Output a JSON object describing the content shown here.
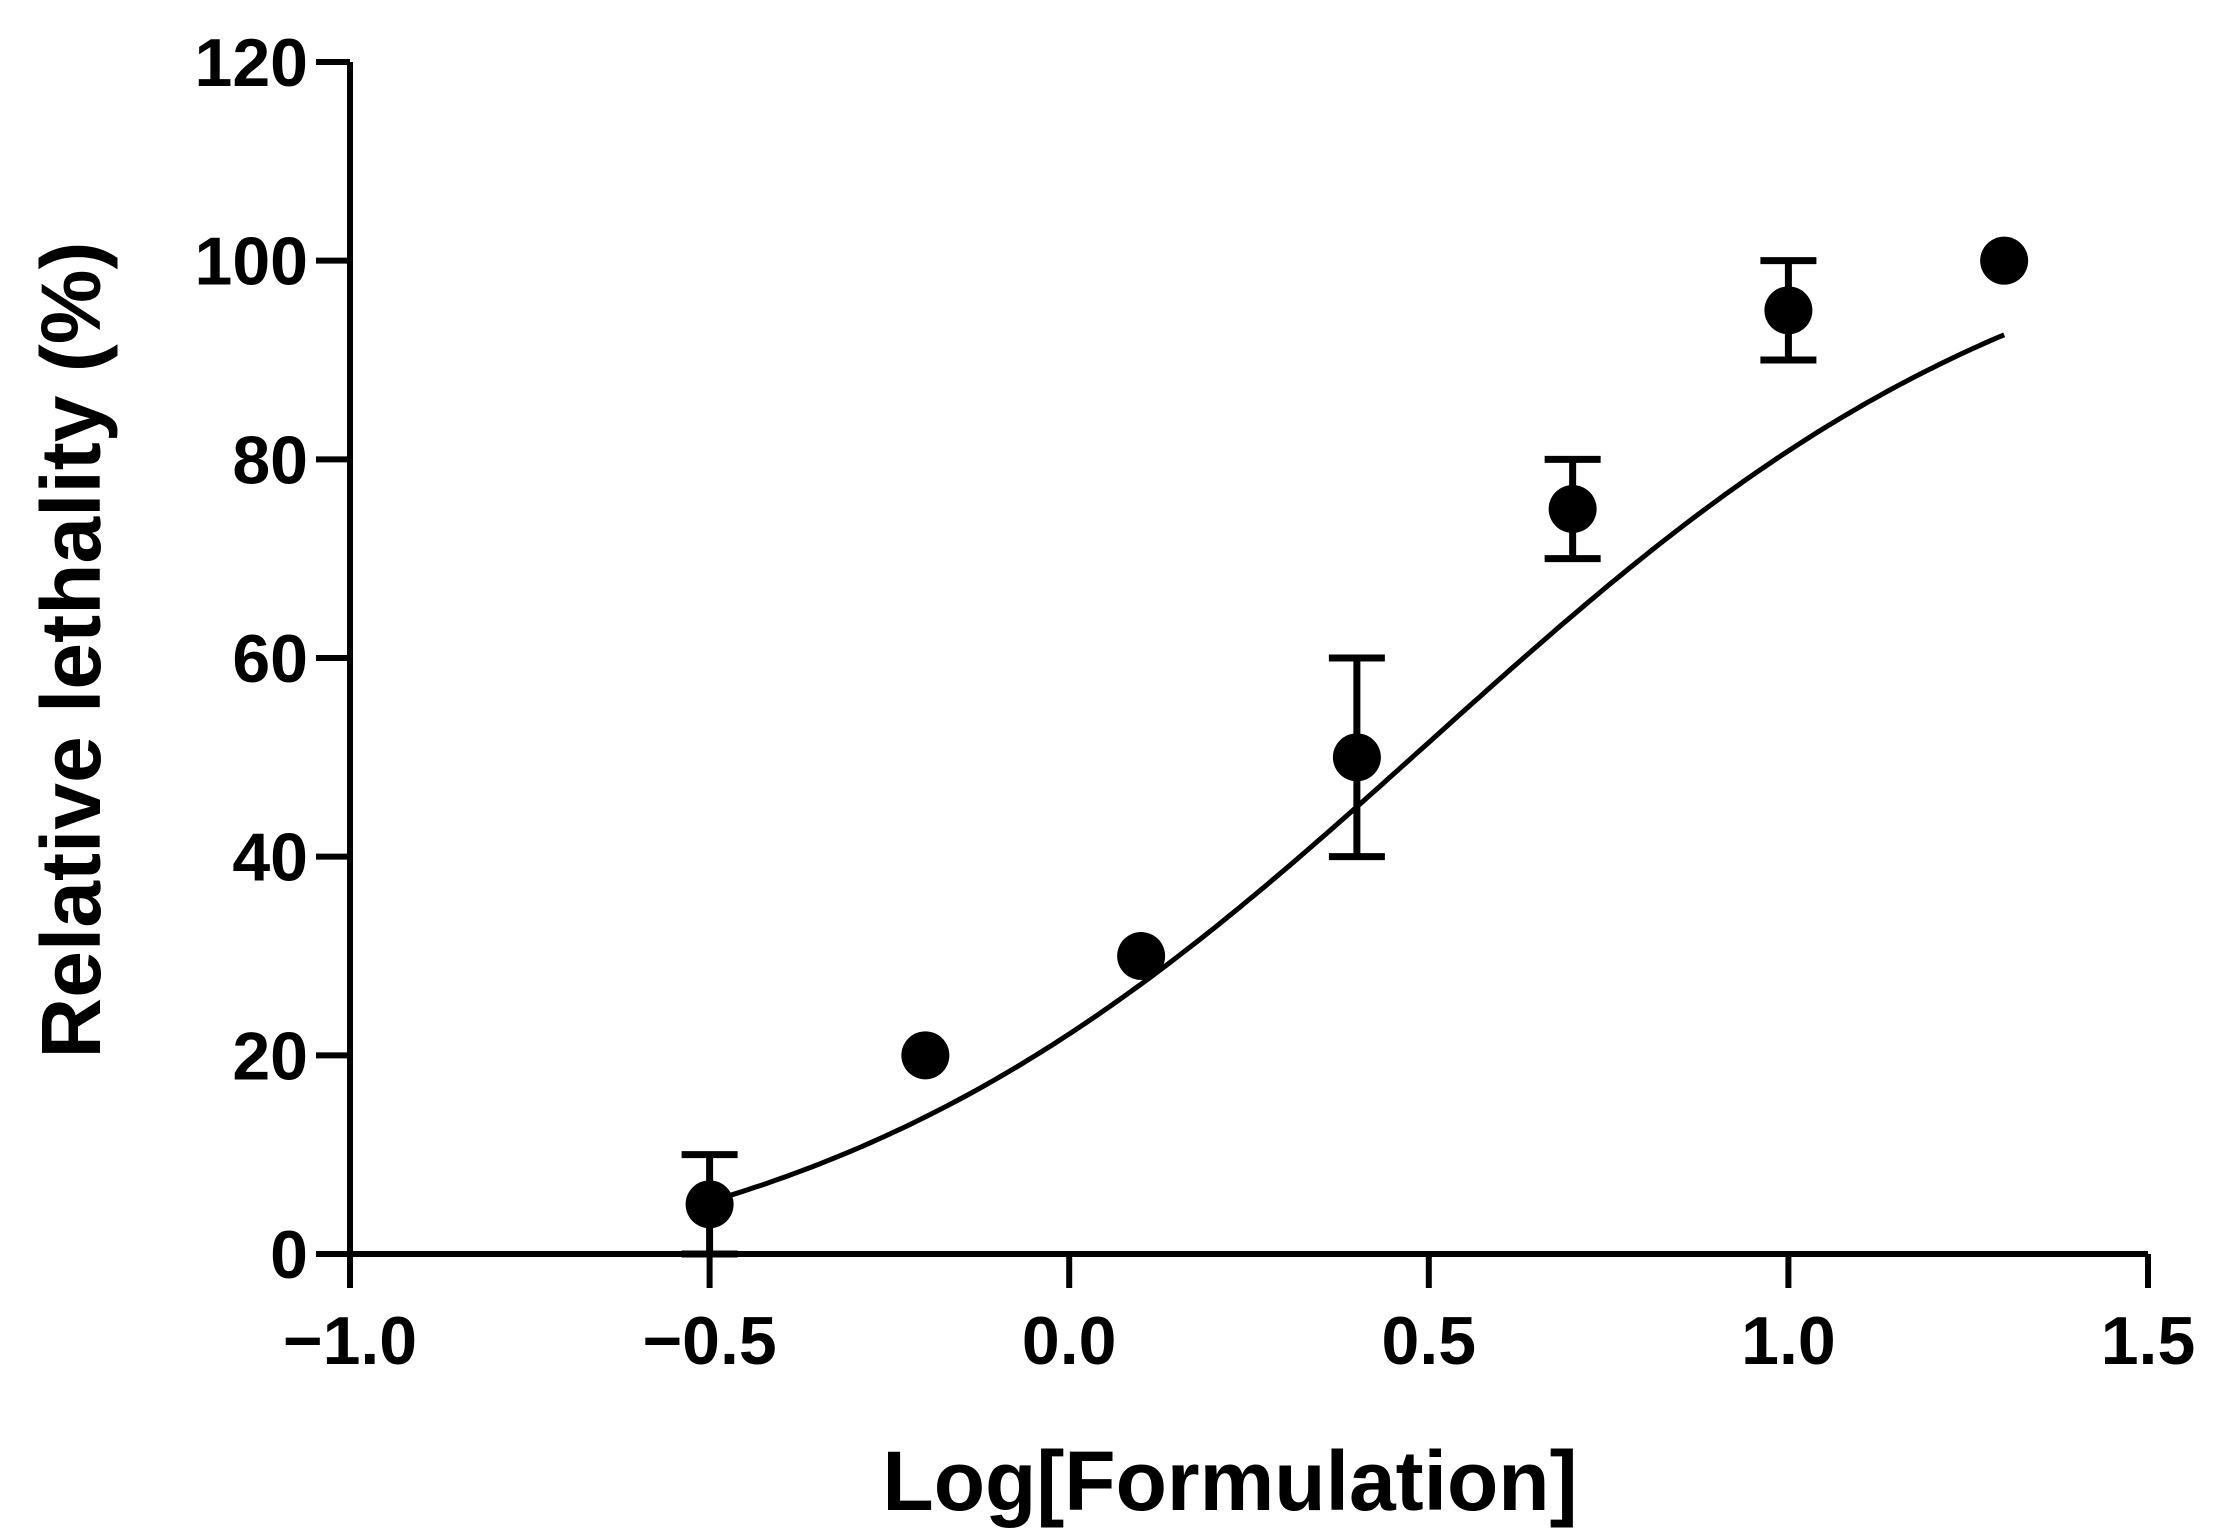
{
  "chart_data": {
    "type": "scatter",
    "title": "",
    "xlabel": "Log[Formulation]",
    "ylabel": "Relative lethality (%)",
    "xlim": [
      -1.0,
      1.5
    ],
    "ylim": [
      0,
      120
    ],
    "x_ticks": [
      "−1.0",
      "−0.5",
      "0.0",
      "0.5",
      "1.0",
      "1.5"
    ],
    "y_ticks": [
      "0",
      "20",
      "40",
      "60",
      "80",
      "100",
      "120"
    ],
    "grid": false,
    "legend": "none",
    "color": "#000000",
    "points": [
      {
        "x": -0.5,
        "y": 5,
        "err": 5
      },
      {
        "x": -0.2,
        "y": 20,
        "err": 0
      },
      {
        "x": 0.1,
        "y": 30,
        "err": 0
      },
      {
        "x": 0.4,
        "y": 50,
        "err": 10
      },
      {
        "x": 0.7,
        "y": 75,
        "err": 5
      },
      {
        "x": 1.0,
        "y": 95,
        "err": 5
      },
      {
        "x": 1.3,
        "y": 100,
        "err": 0
      }
    ],
    "fit_curve": {
      "type": "sigmoidal dose-response",
      "bottom": -5,
      "top": 108,
      "logEC50": 0.5,
      "hill": 1.0,
      "x_range": [
        -0.5,
        1.3
      ]
    }
  }
}
